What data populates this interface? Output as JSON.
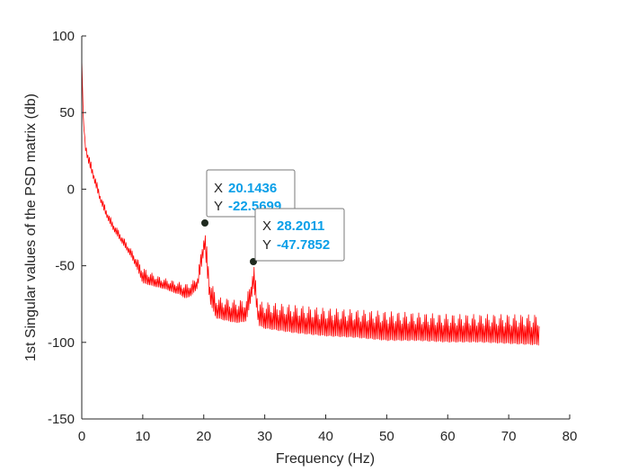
{
  "chart_data": {
    "type": "line",
    "title": "",
    "xlabel": "Frequency (Hz)",
    "ylabel": "1st Singular values of the PSD matrix (db)",
    "xlim": [
      0,
      80
    ],
    "ylim": [
      -150,
      100
    ],
    "xticks": [
      0,
      10,
      20,
      30,
      40,
      50,
      60,
      70,
      80
    ],
    "yticks": [
      -150,
      -100,
      -50,
      0,
      50,
      100
    ],
    "grid": false,
    "legend": "none",
    "series": [
      {
        "color": "#ff0000",
        "upper": [
          [
            0,
            85
          ],
          [
            0.3,
            40
          ],
          [
            1,
            25
          ],
          [
            2,
            12
          ],
          [
            3,
            -2
          ],
          [
            4,
            -12
          ],
          [
            5,
            -20
          ],
          [
            6,
            -26
          ],
          [
            7,
            -32
          ],
          [
            8,
            -38
          ],
          [
            9,
            -44
          ],
          [
            10,
            -50
          ],
          [
            11,
            -53
          ],
          [
            12,
            -55
          ],
          [
            13,
            -57
          ],
          [
            14,
            -58
          ],
          [
            15,
            -59
          ],
          [
            16,
            -60
          ],
          [
            17,
            -61
          ],
          [
            18,
            -60
          ],
          [
            19,
            -55
          ],
          [
            20.1436,
            -22.5699
          ],
          [
            21,
            -55
          ],
          [
            22,
            -68
          ],
          [
            23,
            -70
          ],
          [
            24,
            -70
          ],
          [
            25,
            -71
          ],
          [
            26,
            -71
          ],
          [
            27,
            -70
          ],
          [
            28.2011,
            -47.7852
          ],
          [
            29,
            -72
          ],
          [
            30,
            -72
          ],
          [
            35,
            -74
          ],
          [
            40,
            -76
          ],
          [
            45,
            -77
          ],
          [
            50,
            -78
          ],
          [
            55,
            -79
          ],
          [
            60,
            -80
          ],
          [
            65,
            -80
          ],
          [
            70,
            -80
          ],
          [
            75,
            -80
          ]
        ],
        "lower": [
          [
            0,
            60
          ],
          [
            0.3,
            30
          ],
          [
            1,
            18
          ],
          [
            2,
            5
          ],
          [
            3,
            -8
          ],
          [
            4,
            -18
          ],
          [
            5,
            -26
          ],
          [
            6,
            -32
          ],
          [
            7,
            -38
          ],
          [
            8,
            -44
          ],
          [
            9,
            -52
          ],
          [
            10,
            -62
          ],
          [
            11,
            -63
          ],
          [
            12,
            -64
          ],
          [
            13,
            -65
          ],
          [
            14,
            -66
          ],
          [
            15,
            -68
          ],
          [
            16,
            -69
          ],
          [
            17,
            -72
          ],
          [
            18,
            -70
          ],
          [
            19,
            -65
          ],
          [
            20.1436,
            -40
          ],
          [
            21,
            -75
          ],
          [
            22,
            -85
          ],
          [
            23,
            -86
          ],
          [
            24,
            -87
          ],
          [
            25,
            -88
          ],
          [
            26,
            -88
          ],
          [
            27,
            -87
          ],
          [
            28.2011,
            -65
          ],
          [
            29,
            -90
          ],
          [
            30,
            -92
          ],
          [
            35,
            -95
          ],
          [
            40,
            -97
          ],
          [
            45,
            -98
          ],
          [
            50,
            -100
          ],
          [
            55,
            -100
          ],
          [
            60,
            -101
          ],
          [
            65,
            -101
          ],
          [
            70,
            -102
          ],
          [
            75,
            -103
          ]
        ]
      }
    ],
    "datatips": [
      {
        "x_label": "X",
        "x": "20.1436",
        "y_label": "Y",
        "y": "-22.5699"
      },
      {
        "x_label": "X",
        "x": "28.2011",
        "y_label": "Y",
        "y": "-47.7852"
      }
    ]
  }
}
